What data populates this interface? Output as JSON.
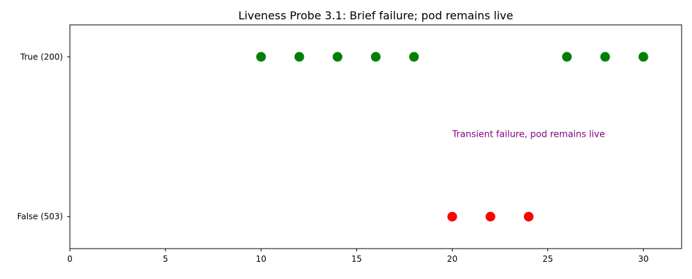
{
  "chart_data": {
    "type": "scatter",
    "title": "Liveness Probe 3.1: Brief failure; pod remains live",
    "xlabel": "",
    "ylabel": "",
    "xlim": [
      0,
      32
    ],
    "x_ticks": [
      0,
      5,
      10,
      15,
      20,
      25,
      30
    ],
    "y_categories": [
      "False (503)",
      "True (200)"
    ],
    "grid": false,
    "series": [
      {
        "status": "True (200)",
        "color": "#008000",
        "x": [
          10,
          12,
          14,
          16,
          18,
          26,
          28,
          30
        ]
      },
      {
        "status": "False (503)",
        "color": "#ff0000",
        "x": [
          20,
          22,
          24
        ]
      }
    ],
    "annotations": [
      {
        "text": "Transient failure, pod remains live",
        "x": 20,
        "y_level": 0.52,
        "color": "#800080"
      }
    ]
  }
}
